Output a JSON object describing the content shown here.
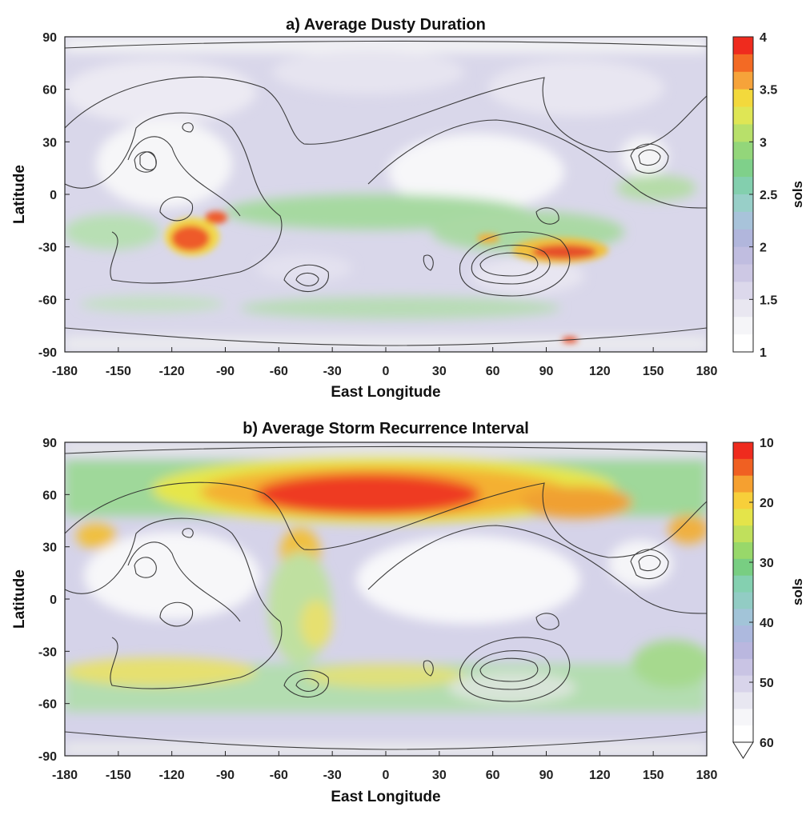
{
  "chart_data": [
    {
      "type": "heatmap",
      "title": "a) Average Dusty Duration",
      "xlabel": "East Longitude",
      "ylabel": "Latitude",
      "xlim": [
        -180,
        180
      ],
      "ylim": [
        -90,
        90
      ],
      "xticks": [
        "-180",
        "-150",
        "-120",
        "-90",
        "-60",
        "-30",
        "0",
        "30",
        "60",
        "90",
        "120",
        "150",
        "180"
      ],
      "yticks": [
        "90",
        "60",
        "30",
        "0",
        "-30",
        "-60",
        "-90"
      ],
      "colorbar": {
        "label": "sols",
        "range": [
          1,
          4
        ],
        "ticks": [
          "4",
          "3.5",
          "3",
          "2.5",
          "2",
          "1.5",
          "1"
        ],
        "direction": "top-high"
      },
      "hotspots": [
        {
          "lon": -108,
          "lat": -25,
          "value": 4.0
        },
        {
          "lon": 98,
          "lat": -32,
          "value": 3.9
        },
        {
          "lon": 65,
          "lat": -28,
          "value": 3.4
        },
        {
          "lon": 110,
          "lat": -83,
          "value": 3.8
        }
      ],
      "contours": "topography"
    },
    {
      "type": "heatmap",
      "title": "b) Average Storm Recurrence Interval",
      "xlabel": "East Longitude",
      "ylabel": "Latitude",
      "xlim": [
        -180,
        180
      ],
      "ylim": [
        -90,
        90
      ],
      "xticks": [
        "-180",
        "-150",
        "-120",
        "-90",
        "-60",
        "-30",
        "0",
        "30",
        "60",
        "90",
        "120",
        "150",
        "180"
      ],
      "yticks": [
        "90",
        "60",
        "30",
        "0",
        "-30",
        "-60",
        "-90"
      ],
      "colorbar": {
        "label": "sols",
        "range": [
          10,
          60
        ],
        "ticks": [
          "10",
          "20",
          "30",
          "40",
          "50",
          "60"
        ],
        "direction": "top-low",
        "extend": "max"
      },
      "hotspots": [
        {
          "lon": -25,
          "lat": 57,
          "value": 10
        },
        {
          "lon": 110,
          "lat": 55,
          "value": 15
        },
        {
          "lon": 175,
          "lat": 38,
          "value": 14
        },
        {
          "lon": -160,
          "lat": 37,
          "value": 15
        }
      ],
      "contours": "topography"
    }
  ]
}
